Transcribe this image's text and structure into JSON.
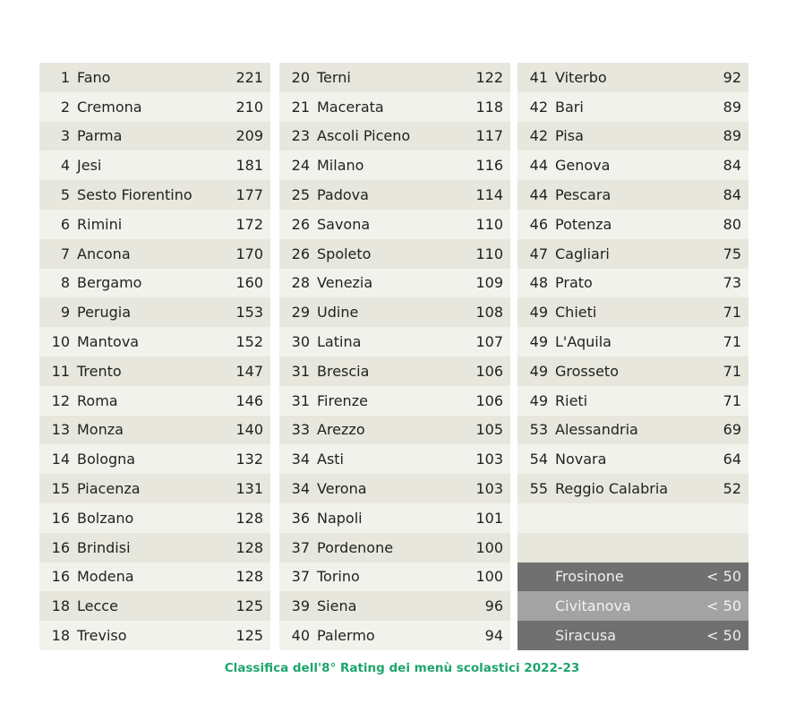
{
  "columns": [
    [
      [
        "1",
        "Fano",
        "221"
      ],
      [
        "2",
        "Cremona",
        "210"
      ],
      [
        "3",
        "Parma",
        "209"
      ],
      [
        "4",
        "Jesi",
        "181"
      ],
      [
        "5",
        "Sesto Fiorentino",
        "177"
      ],
      [
        "6",
        "Rimini",
        "172"
      ],
      [
        "7",
        "Ancona",
        "170"
      ],
      [
        "8",
        "Bergamo",
        "160"
      ],
      [
        "9",
        "Perugia",
        "153"
      ],
      [
        "10",
        "Mantova",
        "152"
      ],
      [
        "11",
        "Trento",
        "147"
      ],
      [
        "12",
        "Roma",
        "146"
      ],
      [
        "13",
        "Monza",
        "140"
      ],
      [
        "14",
        "Bologna",
        "132"
      ],
      [
        "15",
        "Piacenza",
        "131"
      ],
      [
        "16",
        "Bolzano",
        "128"
      ],
      [
        "16",
        "Brindisi",
        "128"
      ],
      [
        "16",
        "Modena",
        "128"
      ],
      [
        "18",
        "Lecce",
        "125"
      ],
      [
        "18",
        "Treviso",
        "125"
      ]
    ],
    [
      [
        "20",
        "Terni",
        "122"
      ],
      [
        "21",
        "Macerata",
        "118"
      ],
      [
        "23",
        "Ascoli Piceno",
        "117"
      ],
      [
        "24",
        "Milano",
        "116"
      ],
      [
        "25",
        "Padova",
        "114"
      ],
      [
        "26",
        "Savona",
        "110"
      ],
      [
        "26",
        "Spoleto",
        "110"
      ],
      [
        "28",
        "Venezia",
        "109"
      ],
      [
        "29",
        "Udine",
        "108"
      ],
      [
        "30",
        "Latina",
        "107"
      ],
      [
        "31",
        "Brescia",
        "106"
      ],
      [
        "31",
        "Firenze",
        "106"
      ],
      [
        "33",
        "Arezzo",
        "105"
      ],
      [
        "34",
        "Asti",
        "103"
      ],
      [
        "34",
        "Verona",
        "103"
      ],
      [
        "36",
        "Napoli",
        "101"
      ],
      [
        "37",
        "Pordenone",
        "100"
      ],
      [
        "37",
        "Torino",
        "100"
      ],
      [
        "39",
        "Siena",
        "96"
      ],
      [
        "40",
        "Palermo",
        "94"
      ]
    ],
    [
      [
        "41",
        "Viterbo",
        "92"
      ],
      [
        "42",
        "Bari",
        "89"
      ],
      [
        "42",
        "Pisa",
        "89"
      ],
      [
        "44",
        "Genova",
        "84"
      ],
      [
        "44",
        "Pescara",
        "84"
      ],
      [
        "46",
        "Potenza",
        "80"
      ],
      [
        "47",
        "Cagliari",
        "75"
      ],
      [
        "48",
        "Prato",
        "73"
      ],
      [
        "49",
        "Chieti",
        "71"
      ],
      [
        "49",
        "L'Aquila",
        "71"
      ],
      [
        "49",
        "Grosseto",
        "71"
      ],
      [
        "49",
        "Rieti",
        "71"
      ],
      [
        "53",
        "Alessandria",
        "69"
      ],
      [
        "54",
        "Novara",
        "64"
      ],
      [
        "55",
        "Reggio Calabria",
        "52"
      ],
      [
        "",
        "",
        ""
      ],
      [
        "",
        "",
        ""
      ],
      [
        "",
        "Frosinone",
        "< 50"
      ],
      [
        "",
        "Civitanova",
        "< 50"
      ],
      [
        "",
        "Siracusa",
        "< 50"
      ]
    ]
  ],
  "below_threshold_colors": [
    "#707070",
    "#a3a3a3",
    "#707070"
  ],
  "caption": "Classifica dell'8° Rating dei menù scolastici 2022-23"
}
